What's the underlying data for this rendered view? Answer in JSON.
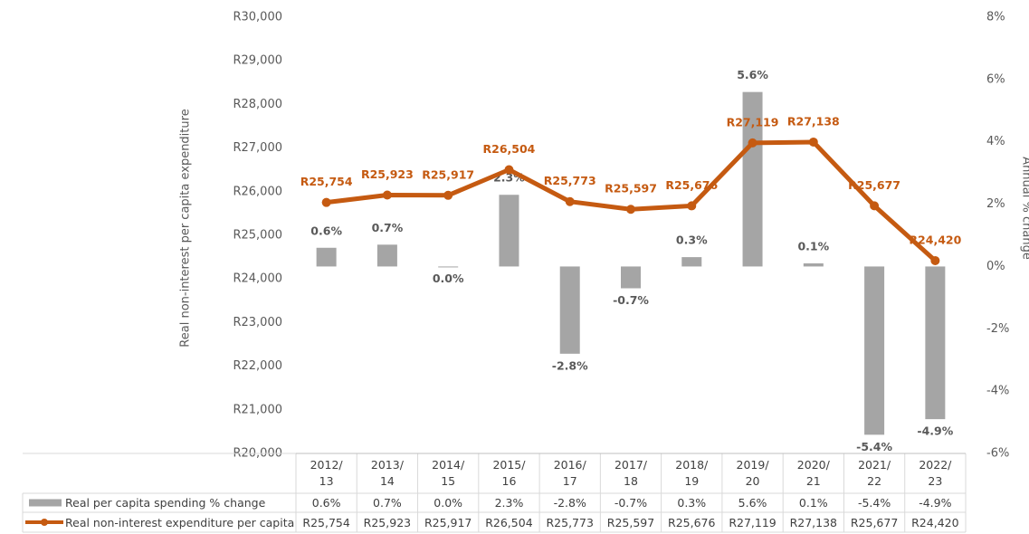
{
  "chart_data": {
    "type": "combo",
    "categories": [
      "2012/13",
      "2013/14",
      "2014/15",
      "2015/16",
      "2016/17",
      "2017/18",
      "2018/19",
      "2019/20",
      "2020/21",
      "2021/22",
      "2022/23"
    ],
    "series": [
      {
        "name": "Real per capita spending % change",
        "type": "bar",
        "axis": "y2",
        "color": "#a5a5a5",
        "values": [
          0.6,
          0.7,
          0.0,
          2.3,
          -2.8,
          -0.7,
          0.3,
          5.6,
          0.1,
          -5.4,
          -4.9
        ],
        "value_labels": [
          "0.6%",
          "0.7%",
          "0.0%",
          "2.3%",
          "-2.8%",
          "-0.7%",
          "0.3%",
          "5.6%",
          "0.1%",
          "-5.4%",
          "-4.9%"
        ]
      },
      {
        "name": "Real non-interest expenditure per capita",
        "type": "line",
        "color": "#c55a11",
        "values": [
          25754,
          25923,
          25917,
          26504,
          25773,
          25597,
          25676,
          27119,
          27138,
          25677,
          24420
        ],
        "value_labels": [
          "R25,754",
          "R25,923",
          "R25,917",
          "R26,504",
          "R25,773",
          "R25,597",
          "R25,676",
          "R27,119",
          "R27,138",
          "R25,677",
          "R24,420"
        ]
      }
    ],
    "ylabel": "Real non-interest per capita expenditure",
    "y2label": "Annual % change",
    "ylim": [
      20000,
      30000
    ],
    "yticks": [
      {
        "value": 20000,
        "label": "R20,000"
      },
      {
        "value": 21000,
        "label": "R21,000"
      },
      {
        "value": 22000,
        "label": "R22,000"
      },
      {
        "value": 23000,
        "label": "R23,000"
      },
      {
        "value": 24000,
        "label": "R24,000"
      },
      {
        "value": 25000,
        "label": "R25,000"
      },
      {
        "value": 26000,
        "label": "R26,000"
      },
      {
        "value": 27000,
        "label": "R27,000"
      },
      {
        "value": 28000,
        "label": "R28,000"
      },
      {
        "value": 29000,
        "label": "R29,000"
      },
      {
        "value": 30000,
        "label": "R30,000"
      }
    ],
    "y2lim": [
      -6,
      8
    ],
    "y2ticks": [
      {
        "value": -6,
        "label": "-6%"
      },
      {
        "value": -4,
        "label": "-4%"
      },
      {
        "value": -2,
        "label": "-2%"
      },
      {
        "value": 0,
        "label": "0%"
      },
      {
        "value": 2,
        "label": "2%"
      },
      {
        "value": 4,
        "label": "4%"
      },
      {
        "value": 6,
        "label": "6%"
      },
      {
        "value": 8,
        "label": "8%"
      }
    ]
  }
}
